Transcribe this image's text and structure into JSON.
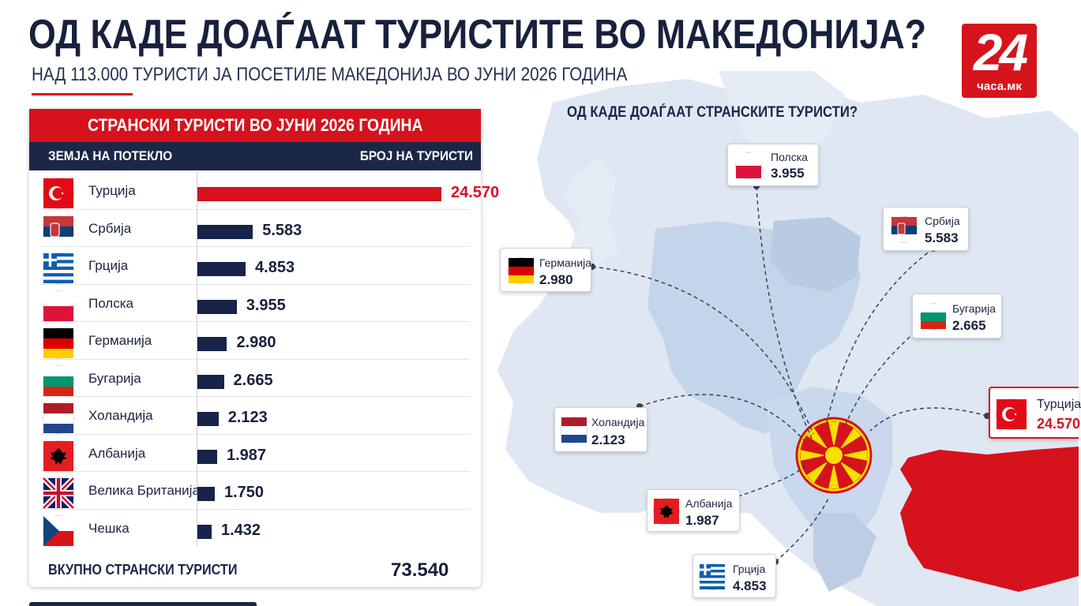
{
  "header": {
    "title": "ОД КАДЕ ДОАЃААТ ТУРИСТИТЕ ВО МАКЕДОНИЈА?",
    "subtitle": "НАД 113.000 ТУРИСТИ ЈА ПОСЕТИЛЕ МАКЕДОНИЈА ВО ЈУНИ 2026 ГОДИНА",
    "logo_number": "24",
    "logo_site": "часа.мк"
  },
  "map": {
    "title": "ОД КАДЕ ДОАЃААТ СТРАНСКИТЕ ТУРИСТИ?"
  },
  "colors": {
    "accent_red": "#d6121d",
    "navy": "#1b2746",
    "bar_navy": "#18234a",
    "map_land": "#dde6f1",
    "map_region": "#c3d3e7",
    "macedonia_red": "#d6121d",
    "macedonia_yellow": "#f8e000"
  },
  "chart_data": {
    "type": "bar",
    "orientation": "horizontal",
    "title": "СТРАНСКИ ТУРИСТИ ВО ЈУНИ 2026 ГОДИНА",
    "xlabel": "БРОЈ НА ТУРИСТИ",
    "ylabel": "ЗЕМЈА НА ПОТЕКЛО",
    "categories": [
      "Турција",
      "Србија",
      "Грција",
      "Полска",
      "Германија",
      "Бугарија",
      "Холандија",
      "Албанија",
      "Велика Британија",
      "Чешка"
    ],
    "values": [
      24570,
      5583,
      4853,
      3955,
      2980,
      2665,
      2123,
      1987,
      1750,
      1432
    ],
    "value_labels": [
      "24.570",
      "5.583",
      "4.853",
      "3.955",
      "2.980",
      "2.665",
      "2.123",
      "1.987",
      "1.750",
      "1.432"
    ],
    "flags": [
      "turkey",
      "serbia",
      "greece",
      "poland",
      "germany",
      "bulgaria",
      "netherlands",
      "albania",
      "uk",
      "czech"
    ],
    "xlim": [
      0,
      24570
    ],
    "grid": false,
    "highlight_color": "#d6121d",
    "bar_color": "#18234a",
    "total_label": "ВКУПНО СТРАНСКИ ТУРИСТИ",
    "total_value": "73.540"
  },
  "callouts": [
    {
      "name": "Полска",
      "value": "3.955",
      "flag": "poland"
    },
    {
      "name": "Србија",
      "value": "5.583",
      "flag": "serbia"
    },
    {
      "name": "Германија",
      "value": "2.980",
      "flag": "germany"
    },
    {
      "name": "Бугарија",
      "value": "2.665",
      "flag": "bulgaria"
    },
    {
      "name": "Турција",
      "value": "24.570",
      "flag": "turkey"
    },
    {
      "name": "Холандија",
      "value": "2.123",
      "flag": "netherlands"
    },
    {
      "name": "Албанија",
      "value": "1.987",
      "flag": "albania"
    },
    {
      "name": "Грција",
      "value": "4.853",
      "flag": "greece"
    }
  ]
}
